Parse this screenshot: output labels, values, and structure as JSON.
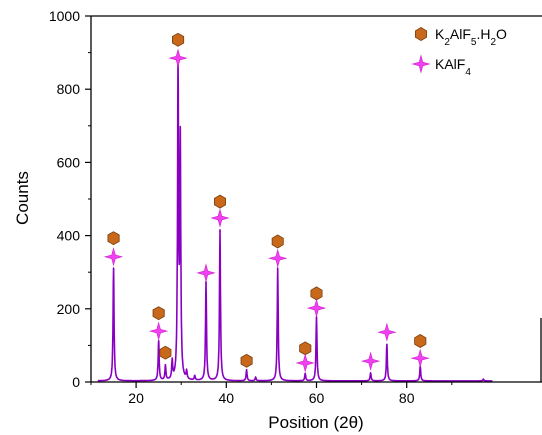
{
  "chart_data": {
    "type": "line",
    "title": "",
    "xlabel": "Position (2θ)",
    "ylabel": "Counts",
    "xlim": [
      10,
      110
    ],
    "ylim": [
      0,
      1000
    ],
    "xticks": [
      20,
      40,
      60,
      80
    ],
    "yticks": [
      0,
      200,
      400,
      600,
      800,
      1000
    ],
    "grid": false,
    "legend_position": "top-right",
    "colors": {
      "trace": "#8a00c2",
      "hexagon_marker": "#c8681a",
      "star_marker": "#f040f0",
      "axis": "#000000"
    },
    "series": [
      {
        "name": "",
        "peaks": [
          {
            "x": 15.0,
            "y": 308
          },
          {
            "x": 25.0,
            "y": 108
          },
          {
            "x": 26.5,
            "y": 40
          },
          {
            "x": 28.0,
            "y": 50
          },
          {
            "x": 29.3,
            "y": 850
          },
          {
            "x": 29.8,
            "y": 640
          },
          {
            "x": 31.2,
            "y": 22
          },
          {
            "x": 33.0,
            "y": 12
          },
          {
            "x": 35.5,
            "y": 270
          },
          {
            "x": 38.6,
            "y": 412
          },
          {
            "x": 44.5,
            "y": 30
          },
          {
            "x": 46.5,
            "y": 10
          },
          {
            "x": 51.4,
            "y": 308
          },
          {
            "x": 57.5,
            "y": 20
          },
          {
            "x": 60.0,
            "y": 175
          },
          {
            "x": 72.0,
            "y": 22
          },
          {
            "x": 75.6,
            "y": 100
          },
          {
            "x": 83.0,
            "y": 40
          },
          {
            "x": 97.0,
            "y": 5
          }
        ]
      }
    ],
    "markers": [
      {
        "name": "K2AlF5.H2O",
        "symbol": "hexagon",
        "points": [
          {
            "x": 15.0,
            "y": 393
          },
          {
            "x": 25.0,
            "y": 188
          },
          {
            "x": 26.5,
            "y": 80
          },
          {
            "x": 29.3,
            "y": 935
          },
          {
            "x": 38.6,
            "y": 493
          },
          {
            "x": 44.5,
            "y": 58
          },
          {
            "x": 51.4,
            "y": 384
          },
          {
            "x": 57.5,
            "y": 92
          },
          {
            "x": 60.0,
            "y": 242
          },
          {
            "x": 83.0,
            "y": 112
          }
        ]
      },
      {
        "name": "KAlF4",
        "symbol": "star",
        "points": [
          {
            "x": 15.0,
            "y": 342
          },
          {
            "x": 25.0,
            "y": 139
          },
          {
            "x": 29.3,
            "y": 885
          },
          {
            "x": 35.5,
            "y": 298
          },
          {
            "x": 38.6,
            "y": 448
          },
          {
            "x": 51.4,
            "y": 338
          },
          {
            "x": 57.5,
            "y": 52
          },
          {
            "x": 60.0,
            "y": 202
          },
          {
            "x": 72.0,
            "y": 57
          },
          {
            "x": 75.6,
            "y": 136
          },
          {
            "x": 83.0,
            "y": 65
          }
        ]
      }
    ],
    "legend": [
      {
        "symbol": "hexagon",
        "parts": [
          [
            "K",
            ""
          ],
          [
            "2",
            "sub"
          ],
          [
            "AlF",
            ""
          ],
          [
            "5",
            "sub"
          ],
          [
            ".H",
            ""
          ],
          [
            "2",
            "sub"
          ],
          [
            "O",
            ""
          ]
        ]
      },
      {
        "symbol": "star",
        "parts": [
          [
            "KAlF",
            ""
          ],
          [
            "4",
            "sub"
          ]
        ]
      }
    ]
  }
}
